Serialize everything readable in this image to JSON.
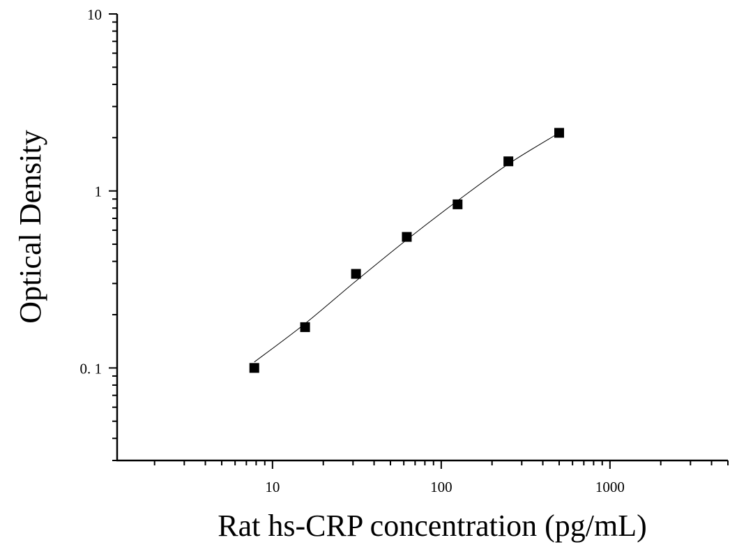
{
  "chart_data": {
    "type": "scatter",
    "xlabel": "Rat hs-CRP concentration (pg/mL)",
    "ylabel": "Optical Density",
    "x_scale": "log",
    "y_scale": "log",
    "xlim": [
      1.2,
      5000
    ],
    "ylim": [
      0.03,
      10
    ],
    "x_tick_labels": [
      {
        "value": 10,
        "label": "10"
      },
      {
        "value": 100,
        "label": "100"
      },
      {
        "value": 1000,
        "label": "1000"
      }
    ],
    "y_tick_labels": [
      {
        "value": 0.1,
        "label": "0. 1"
      },
      {
        "value": 1,
        "label": "1"
      },
      {
        "value": 10,
        "label": "10"
      }
    ],
    "grid": false,
    "legend": "none",
    "series": [
      {
        "marker": "square",
        "color": "#000000",
        "x": [
          7.8,
          15.6,
          31.25,
          62.5,
          125,
          250,
          500
        ],
        "y": [
          0.1,
          0.17,
          0.34,
          0.55,
          0.84,
          1.47,
          2.13
        ]
      }
    ],
    "fit_curve": {
      "color": "#000000",
      "x": [
        7.8,
        15.6,
        31.25,
        62.5,
        125,
        250,
        500
      ],
      "y": [
        0.108,
        0.178,
        0.31,
        0.53,
        0.88,
        1.42,
        2.13
      ]
    }
  }
}
